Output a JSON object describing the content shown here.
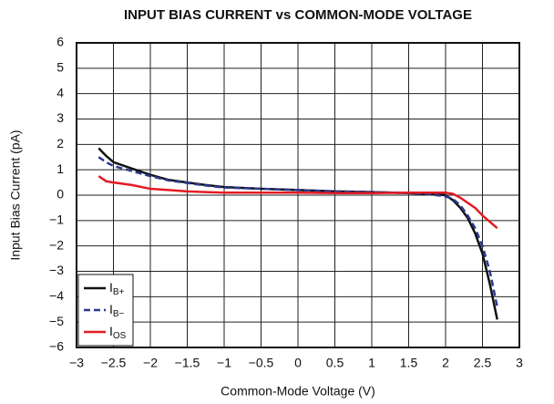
{
  "chart_data": {
    "type": "line",
    "title": "INPUT BIAS CURRENT vs COMMON-MODE VOLTAGE",
    "x_label": "Common-Mode Voltage (V)",
    "y_label": "Input Bias Current (pA)",
    "x": [
      -2.7,
      -2.6,
      -2.5,
      -2.25,
      -2,
      -1.75,
      -1.5,
      -1.25,
      -1,
      -0.5,
      0,
      0.5,
      1,
      1.5,
      1.75,
      2,
      2.1,
      2.2,
      2.3,
      2.4,
      2.5,
      2.6,
      2.7
    ],
    "series": [
      {
        "name": "IB+",
        "color": "#111111",
        "dashed": false,
        "values": [
          1.85,
          1.55,
          1.3,
          1.05,
          0.8,
          0.6,
          0.5,
          0.4,
          0.32,
          0.25,
          0.2,
          0.15,
          0.12,
          0.08,
          0.05,
          0,
          -0.2,
          -0.5,
          -0.9,
          -1.5,
          -2.3,
          -3.5,
          -4.9
        ]
      },
      {
        "name": "IB−",
        "color": "#2b3990",
        "dashed": true,
        "values": [
          1.5,
          1.3,
          1.15,
          0.95,
          0.75,
          0.58,
          0.48,
          0.38,
          0.3,
          0.25,
          0.2,
          0.15,
          0.12,
          0.08,
          0.05,
          -0.05,
          -0.15,
          -0.4,
          -0.8,
          -1.3,
          -2.0,
          -3.0,
          -4.4
        ]
      },
      {
        "name": "IOS",
        "color": "#e31b23",
        "dashed": false,
        "values": [
          0.75,
          0.55,
          0.5,
          0.4,
          0.25,
          0.2,
          0.15,
          0.12,
          0.1,
          0.1,
          0.1,
          0.08,
          0.08,
          0.1,
          0.1,
          0.1,
          0.05,
          -0.1,
          -0.3,
          -0.5,
          -0.8,
          -1.05,
          -1.3
        ]
      }
    ],
    "xlim": [
      -3,
      3
    ],
    "xticks": [
      {
        "value": -3,
        "label": "−3"
      },
      {
        "value": -2.5,
        "label": "−2.5"
      },
      {
        "value": -2,
        "label": "−2"
      },
      {
        "value": -1.5,
        "label": "−1.5"
      },
      {
        "value": -1,
        "label": "−1"
      },
      {
        "value": -0.5,
        "label": "−0.5"
      },
      0,
      0.5,
      1,
      1.5,
      2,
      2.5,
      3
    ],
    "ylim": [
      -6,
      6
    ],
    "yticks": [
      {
        "value": -6,
        "label": "−6"
      },
      {
        "value": -5,
        "label": "−5"
      },
      {
        "value": -4,
        "label": "−4"
      },
      {
        "value": -3,
        "label": "−3"
      },
      {
        "value": -2,
        "label": "−2"
      },
      {
        "value": -1,
        "label": "−1"
      },
      0,
      1,
      2,
      3,
      4,
      5,
      6
    ],
    "grid": true,
    "legend": "lower left"
  }
}
